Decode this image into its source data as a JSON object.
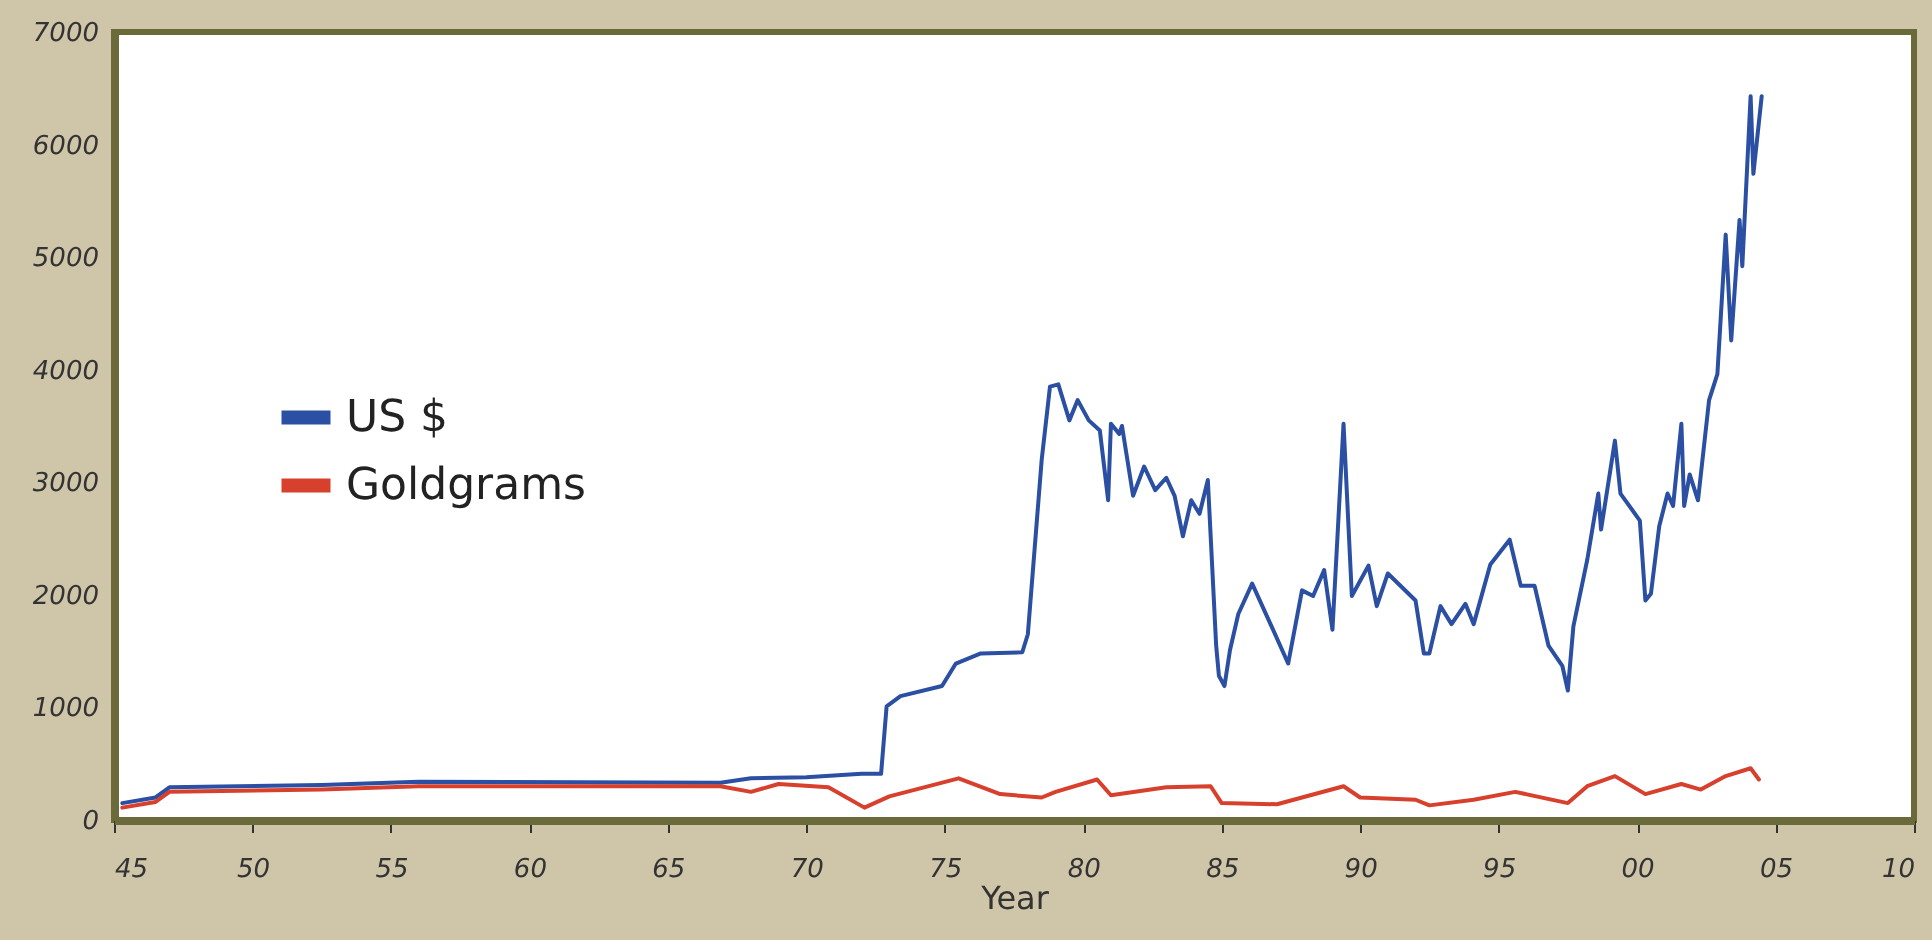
{
  "chart_data": {
    "type": "line",
    "xlabel": "Year",
    "xlim": [
      1945,
      2010
    ],
    "xticks": [
      {
        "value": 1945,
        "label": "45"
      },
      {
        "value": 1950,
        "label": "50"
      },
      {
        "value": 1955,
        "label": "55"
      },
      {
        "value": 1960,
        "label": "60"
      },
      {
        "value": 1965,
        "label": "65"
      },
      {
        "value": 1970,
        "label": "70"
      },
      {
        "value": 1975,
        "label": "75"
      },
      {
        "value": 1980,
        "label": "80"
      },
      {
        "value": 1985,
        "label": "85"
      },
      {
        "value": 1990,
        "label": "90"
      },
      {
        "value": 1995,
        "label": "95"
      },
      {
        "value": 2000,
        "label": "00"
      },
      {
        "value": 2005,
        "label": "05"
      },
      {
        "value": 2010,
        "label": "10"
      }
    ],
    "ylim": [
      0,
      7000
    ],
    "yticks": [
      0,
      1000,
      2000,
      3000,
      4000,
      5000,
      6000,
      7000
    ],
    "legend": "left",
    "grid": false,
    "marker": "none",
    "line_style": "solid",
    "series": [
      {
        "name": "US $",
        "color": "#2a4fa3",
        "x": [
          1945.3,
          1946.5,
          1947,
          1952.5,
          1956,
          1966.9,
          1968,
          1970,
          1972.0,
          1972.7,
          1972.9,
          1973.4,
          1974.9,
          1975.4,
          1976.3,
          1977.8,
          1978.0,
          1978.5,
          1978.8,
          1979.1,
          1979.5,
          1979.8,
          1980.2,
          1980.6,
          1980.9,
          1981.0,
          1981.3,
          1981.4,
          1981.8,
          1982.2,
          1982.6,
          1983.0,
          1983.3,
          1983.6,
          1983.9,
          1984.2,
          1984.5,
          1984.8,
          1984.9,
          1985.1,
          1985.3,
          1985.6,
          1986.1,
          1986.8,
          1987.4,
          1987.9,
          1988.3,
          1988.7,
          1989.0,
          1989.4,
          1989.7,
          1990.3,
          1990.6,
          1991.0,
          1992.0,
          1992.3,
          1992.5,
          1992.9,
          1993.3,
          1993.8,
          1994.1,
          1994.7,
          1995.4,
          1995.8,
          1996.3,
          1996.8,
          1997.3,
          1997.5,
          1997.7,
          1998.2,
          1998.6,
          1998.7,
          1999.2,
          1999.4,
          2000.1,
          2000.3,
          2000.5,
          2000.8,
          2001.1,
          2001.3,
          2001.6,
          2001.7,
          2001.9,
          2002.2,
          2002.6,
          2002.9,
          2003.2,
          2003.4,
          2003.7,
          2003.8,
          2004.1,
          2004.2,
          2004.5
        ],
        "values": [
          150,
          200,
          290,
          310,
          340,
          330,
          370,
          380,
          410,
          410,
          1010,
          1100,
          1190,
          1390,
          1480,
          1490,
          1650,
          3200,
          3850,
          3870,
          3550,
          3730,
          3550,
          3460,
          2840,
          3520,
          3430,
          3500,
          2880,
          3140,
          2930,
          3040,
          2880,
          2520,
          2840,
          2720,
          3020,
          1550,
          1280,
          1190,
          1510,
          1830,
          2100,
          1720,
          1390,
          2040,
          1990,
          2220,
          1690,
          3520,
          1990,
          2260,
          1900,
          2190,
          1950,
          1480,
          1480,
          1900,
          1740,
          1920,
          1740,
          2270,
          2490,
          2080,
          2080,
          1550,
          1370,
          1150,
          1720,
          2310,
          2900,
          2580,
          3370,
          2900,
          2660,
          1950,
          2010,
          2610,
          2900,
          2790,
          3520,
          2790,
          3070,
          2840,
          3730,
          3960,
          5200,
          4260,
          5330,
          4920,
          6430,
          5740,
          6430
        ]
      },
      {
        "name": "Goldgrams",
        "color": "#d8402e",
        "x": [
          1945.3,
          1946.5,
          1947,
          1952.5,
          1956,
          1966.9,
          1968,
          1969,
          1970.8,
          1972.1,
          1973,
          1975.5,
          1977,
          1978.5,
          1979,
          1980.5,
          1981,
          1983,
          1984.6,
          1985,
          1987,
          1989.4,
          1990,
          1992,
          1992.5,
          1994.1,
          1995.6,
          1997.5,
          1998.2,
          1999.2,
          2000.3,
          2001.6,
          2002.3,
          2003.2,
          2004.1,
          2004.4
        ],
        "values": [
          110,
          160,
          250,
          270,
          300,
          300,
          250,
          320,
          290,
          110,
          210,
          370,
          230,
          200,
          250,
          360,
          220,
          290,
          300,
          150,
          140,
          300,
          200,
          180,
          130,
          180,
          250,
          150,
          300,
          390,
          230,
          320,
          270,
          390,
          460,
          360
        ]
      }
    ]
  }
}
